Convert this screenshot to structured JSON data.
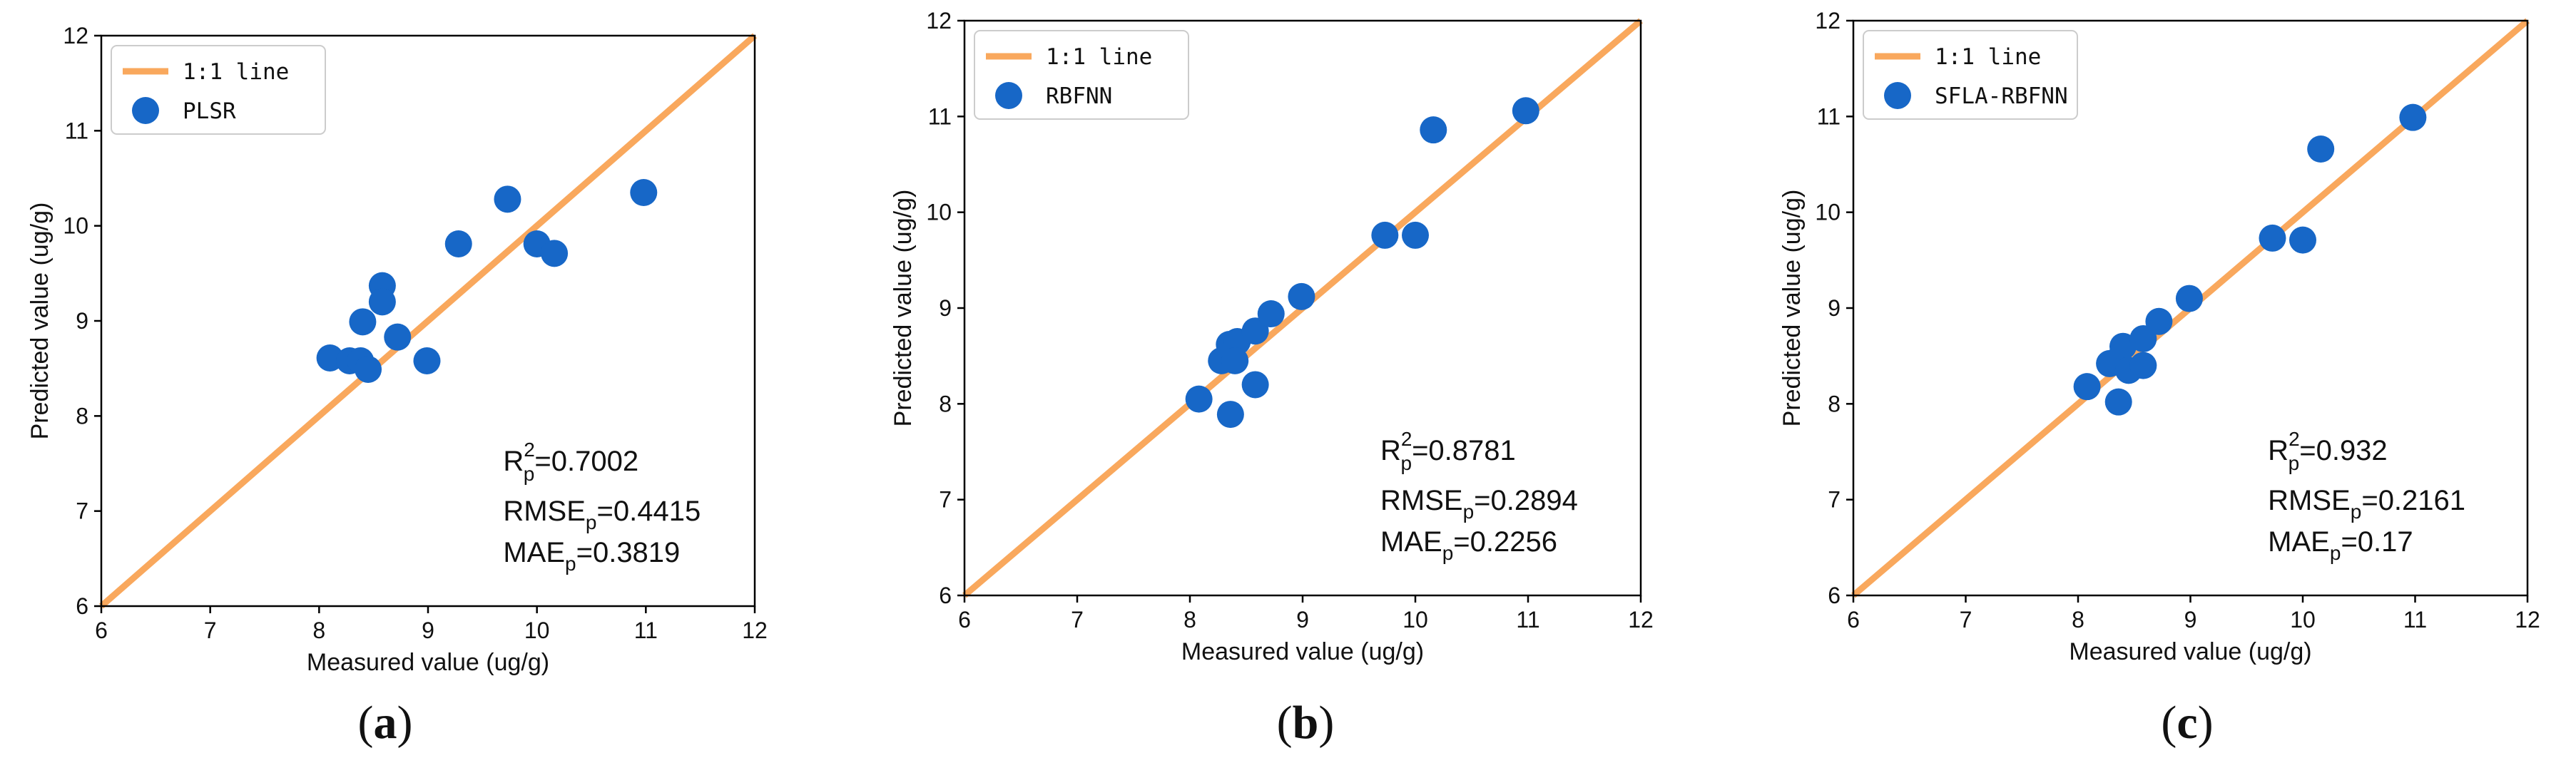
{
  "colors": {
    "line": "#f9a85d",
    "point": "#1767c7",
    "axis": "#000000"
  },
  "chart_data": [
    {
      "type": "scatter",
      "panel_label": "a",
      "xlabel": "Measured value (ug/g)",
      "ylabel": "Predicted value (ug/g)",
      "xlim": [
        6,
        12
      ],
      "ylim": [
        6,
        12
      ],
      "xticks": [
        "6",
        "7",
        "8",
        "9",
        "10",
        "11",
        "12"
      ],
      "yticks": [
        "6",
        "7",
        "8",
        "9",
        "10",
        "11",
        "12"
      ],
      "legend": {
        "line": "1:1 line",
        "points": "PLSR",
        "position": "top-left"
      },
      "line": {
        "name": "1:1 line",
        "x": [
          6,
          12
        ],
        "y": [
          6,
          12
        ]
      },
      "points": {
        "name": "PLSR",
        "x": [
          8.1,
          8.28,
          8.38,
          8.45,
          8.4,
          8.58,
          8.58,
          8.72,
          8.99,
          9.28,
          9.73,
          10.0,
          10.16,
          10.98
        ],
        "y": [
          8.61,
          8.58,
          8.58,
          8.49,
          8.99,
          9.37,
          9.2,
          8.83,
          8.58,
          9.81,
          10.28,
          9.81,
          9.71,
          10.35
        ]
      },
      "metrics": {
        "r2_label": "R",
        "r2_sup": "2",
        "r2_sub": "p",
        "r2_value": "=0.7002",
        "rmse_label": "RMSE",
        "rmse_sub": "p",
        "rmse_value": "=0.4415",
        "mae_label": "MAE",
        "mae_sub": "p",
        "mae_value": "=0.3819"
      }
    },
    {
      "type": "scatter",
      "panel_label": "b",
      "xlabel": "Measured value (ug/g)",
      "ylabel": "Predicted value (ug/g)",
      "xlim": [
        6,
        12
      ],
      "ylim": [
        6,
        12
      ],
      "xticks": [
        "6",
        "7",
        "8",
        "9",
        "10",
        "11",
        "12"
      ],
      "yticks": [
        "6",
        "7",
        "8",
        "9",
        "10",
        "11",
        "12"
      ],
      "legend": {
        "line": "1:1 line",
        "points": "RBFNN",
        "position": "top-left"
      },
      "line": {
        "name": "1:1 line",
        "x": [
          6,
          12
        ],
        "y": [
          6,
          12
        ]
      },
      "points": {
        "name": "RBFNN",
        "x": [
          8.08,
          8.28,
          8.35,
          8.42,
          8.4,
          8.36,
          8.58,
          8.58,
          8.72,
          8.99,
          9.73,
          10.0,
          10.16,
          10.98
        ],
        "y": [
          8.05,
          8.45,
          8.62,
          8.65,
          8.45,
          7.89,
          8.76,
          8.2,
          8.94,
          9.12,
          9.76,
          9.76,
          10.86,
          11.06
        ]
      },
      "metrics": {
        "r2_label": "R",
        "r2_sup": "2",
        "r2_sub": "p",
        "r2_value": "=0.8781",
        "rmse_label": "RMSE",
        "rmse_sub": "p",
        "rmse_value": "=0.2894",
        "mae_label": "MAE",
        "mae_sub": "p",
        "mae_value": "=0.2256"
      }
    },
    {
      "type": "scatter",
      "panel_label": "c",
      "xlabel": "Measured value (ug/g)",
      "ylabel": "Predicted value (ug/g)",
      "xlim": [
        6,
        12
      ],
      "ylim": [
        6,
        12
      ],
      "xticks": [
        "6",
        "7",
        "8",
        "9",
        "10",
        "11",
        "12"
      ],
      "yticks": [
        "6",
        "7",
        "8",
        "9",
        "10",
        "11",
        "12"
      ],
      "legend": {
        "line": "1:1 line",
        "points": "SFLA-RBFNN",
        "position": "top-left"
      },
      "line": {
        "name": "1:1 line",
        "x": [
          6,
          12
        ],
        "y": [
          6,
          12
        ]
      },
      "points": {
        "name": "SFLA-RBFNN",
        "x": [
          8.08,
          8.28,
          8.35,
          8.4,
          8.45,
          8.36,
          8.58,
          8.58,
          8.72,
          8.99,
          9.73,
          10.0,
          10.16,
          10.98
        ],
        "y": [
          8.18,
          8.42,
          8.45,
          8.6,
          8.35,
          8.02,
          8.68,
          8.4,
          8.86,
          9.1,
          9.73,
          9.71,
          10.66,
          10.99
        ]
      },
      "metrics": {
        "r2_label": "R",
        "r2_sup": "2",
        "r2_sub": "p",
        "r2_value": "=0.932",
        "rmse_label": "RMSE",
        "rmse_sub": "p",
        "rmse_value": "=0.2161",
        "mae_label": "MAE",
        "mae_sub": "p",
        "mae_value": "=0.17"
      }
    }
  ]
}
